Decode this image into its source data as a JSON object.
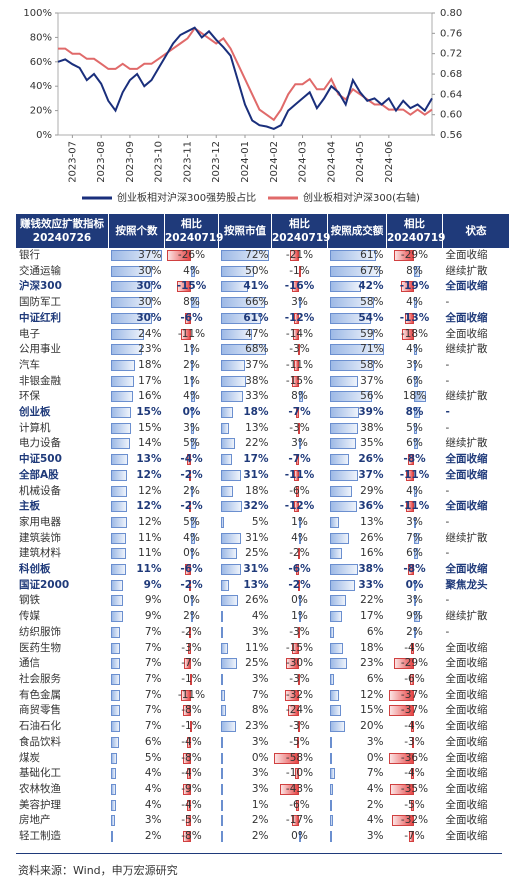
{
  "chart_data": {
    "type": "line",
    "categories": [
      null,
      null,
      "2023-07",
      null,
      null,
      null,
      "2023-08",
      null,
      null,
      null,
      "2023-09",
      null,
      null,
      null,
      "2023-10",
      null,
      null,
      null,
      "2023-11",
      null,
      null,
      null,
      "2023-12",
      null,
      null,
      null,
      "2024-01",
      null,
      null,
      null,
      "2024-02",
      null,
      null,
      null,
      "2024-03",
      null,
      null,
      null,
      "2024-04",
      null,
      null,
      null,
      "2024-05",
      null,
      null,
      null,
      "2024-06",
      null,
      null,
      null,
      null,
      null,
      null
    ],
    "series": [
      {
        "name": "创业板相对沪深300强势股占比",
        "color": "#1a2f7c",
        "values": [
          60,
          62,
          58,
          55,
          45,
          50,
          42,
          28,
          20,
          35,
          45,
          50,
          40,
          45,
          55,
          65,
          75,
          82,
          85,
          88,
          80,
          85,
          78,
          72,
          65,
          45,
          25,
          12,
          8,
          7,
          5,
          8,
          20,
          25,
          30,
          35,
          22,
          30,
          40,
          35,
          25,
          45,
          35,
          28,
          30,
          25,
          30,
          20,
          28,
          22,
          25,
          20,
          30
        ]
      },
      {
        "name": "创业板相对沪深300(右轴)",
        "color": "#e06a6a",
        "axis": "y2",
        "values": [
          0.73,
          0.73,
          0.72,
          0.72,
          0.71,
          0.71,
          0.7,
          0.69,
          0.69,
          0.7,
          0.69,
          0.69,
          0.7,
          0.7,
          0.71,
          0.72,
          0.73,
          0.74,
          0.75,
          0.77,
          0.76,
          0.75,
          0.74,
          0.75,
          0.73,
          0.7,
          0.67,
          0.64,
          0.61,
          0.6,
          0.59,
          0.61,
          0.64,
          0.66,
          0.66,
          0.67,
          0.65,
          0.65,
          0.67,
          0.64,
          0.63,
          0.65,
          0.64,
          0.63,
          0.62,
          0.62,
          0.61,
          0.61,
          0.61,
          0.6,
          0.61,
          0.6,
          0.61
        ]
      }
    ],
    "ylim": [
      0,
      100
    ],
    "yticks": [
      {
        "value": 0,
        "label": "0%"
      },
      {
        "value": 20,
        "label": "20%"
      },
      {
        "value": 40,
        "label": "40%"
      },
      {
        "value": 60,
        "label": "60%"
      },
      {
        "value": 80,
        "label": "80%"
      },
      {
        "value": 100,
        "label": "100%"
      }
    ],
    "y2lim": [
      0.56,
      0.8
    ],
    "y2ticks": [
      0.56,
      {
        "value": 0.6,
        "label": "0.60"
      },
      0.64,
      0.68,
      0.72,
      0.76,
      {
        "value": 0.8,
        "label": "0.80"
      }
    ],
    "legend": "bottom"
  },
  "table": {
    "header": [
      [
        "赚钱效应扩散指标",
        "20240726"
      ],
      [
        "按照个数"
      ],
      [
        "相比",
        "20240719"
      ],
      [
        "按照市值"
      ],
      [
        "相比",
        "20240719"
      ],
      [
        "按照成交额"
      ],
      [
        "相比",
        "20240719"
      ],
      [
        "状态"
      ]
    ],
    "rows": [
      [
        "银行",
        "37%",
        "-26%",
        "72%",
        "-21%",
        "61%",
        "-29%",
        "全面收缩"
      ],
      [
        "交通运输",
        "30%",
        "4%",
        "50%",
        "-1%",
        "67%",
        "8%",
        "继续扩散"
      ],
      [
        "沪深300",
        "30%",
        "-15%",
        "41%",
        "-16%",
        "42%",
        "-19%",
        "全面收缩"
      ],
      [
        "国防军工",
        "30%",
        "8%",
        "66%",
        "3%",
        "58%",
        "4%",
        "-"
      ],
      [
        "中证红利",
        "30%",
        "-6%",
        "61%",
        "-12%",
        "54%",
        "-13%",
        "全面收缩"
      ],
      [
        "电子",
        "24%",
        "-11%",
        "47%",
        "-14%",
        "59%",
        "-18%",
        "全面收缩"
      ],
      [
        "公用事业",
        "23%",
        "1%",
        "68%",
        "-3%",
        "71%",
        "4%",
        "继续扩散"
      ],
      [
        "汽车",
        "18%",
        "2%",
        "37%",
        "-11%",
        "58%",
        "3%",
        "-"
      ],
      [
        "非银金融",
        "17%",
        "1%",
        "38%",
        "-15%",
        "37%",
        "6%",
        "-"
      ],
      [
        "环保",
        "16%",
        "4%",
        "33%",
        "8%",
        "56%",
        "18%",
        "继续扩散"
      ],
      [
        "创业板",
        "15%",
        "0%",
        "18%",
        "-7%",
        "39%",
        "8%",
        "-"
      ],
      [
        "计算机",
        "15%",
        "3%",
        "13%",
        "-3%",
        "38%",
        "5%",
        "-"
      ],
      [
        "电力设备",
        "14%",
        "5%",
        "22%",
        "3%",
        "35%",
        "6%",
        "继续扩散"
      ],
      [
        "中证500",
        "13%",
        "-4%",
        "17%",
        "-7%",
        "26%",
        "-8%",
        "全面收缩"
      ],
      [
        "全部A股",
        "12%",
        "-2%",
        "31%",
        "-11%",
        "37%",
        "-11%",
        "全面收缩"
      ],
      [
        "机械设备",
        "12%",
        "2%",
        "18%",
        "-6%",
        "29%",
        "4%",
        "-"
      ],
      [
        "主板",
        "12%",
        "-2%",
        "32%",
        "-12%",
        "36%",
        "-11%",
        "全面收缩"
      ],
      [
        "家用电器",
        "12%",
        "5%",
        "5%",
        "1%",
        "13%",
        "3%",
        "-"
      ],
      [
        "建筑装饰",
        "11%",
        "4%",
        "31%",
        "4%",
        "26%",
        "7%",
        "继续扩散"
      ],
      [
        "建筑材料",
        "11%",
        "0%",
        "25%",
        "-2%",
        "16%",
        "6%",
        "-"
      ],
      [
        "科创板",
        "11%",
        "-6%",
        "31%",
        "-6%",
        "38%",
        "-8%",
        "全面收缩"
      ],
      [
        "国证2000",
        "9%",
        "-2%",
        "13%",
        "-2%",
        "33%",
        "0%",
        "聚焦龙头"
      ],
      [
        "钢铁",
        "9%",
        "0%",
        "26%",
        "0%",
        "22%",
        "3%",
        "-"
      ],
      [
        "传媒",
        "9%",
        "2%",
        "4%",
        "1%",
        "17%",
        "9%",
        "继续扩散"
      ],
      [
        "纺织服饰",
        "7%",
        "-2%",
        "3%",
        "-3%",
        "6%",
        "2%",
        "-"
      ],
      [
        "医药生物",
        "7%",
        "-3%",
        "11%",
        "-15%",
        "18%",
        "-4%",
        "全面收缩"
      ],
      [
        "通信",
        "7%",
        "-7%",
        "25%",
        "-30%",
        "23%",
        "-29%",
        "全面收缩"
      ],
      [
        "社会服务",
        "7%",
        "-1%",
        "3%",
        "-3%",
        "6%",
        "-6%",
        "全面收缩"
      ],
      [
        "有色金属",
        "7%",
        "-11%",
        "7%",
        "-32%",
        "12%",
        "-37%",
        "全面收缩"
      ],
      [
        "商贸零售",
        "7%",
        "-8%",
        "8%",
        "-24%",
        "15%",
        "-37%",
        "全面收缩"
      ],
      [
        "石油石化",
        "7%",
        "-1%",
        "23%",
        "-3%",
        "20%",
        "-4%",
        "全面收缩"
      ],
      [
        "食品饮料",
        "6%",
        "-4%",
        "3%",
        "-5%",
        "3%",
        "-3%",
        "全面收缩"
      ],
      [
        "煤炭",
        "5%",
        "-8%",
        "0%",
        "-58%",
        "0%",
        "-36%",
        "全面收缩"
      ],
      [
        "基础化工",
        "4%",
        "-4%",
        "3%",
        "-10%",
        "7%",
        "-4%",
        "全面收缩"
      ],
      [
        "农林牧渔",
        "4%",
        "-9%",
        "3%",
        "-43%",
        "4%",
        "-35%",
        "全面收缩"
      ],
      [
        "美容护理",
        "4%",
        "-4%",
        "1%",
        "-6%",
        "2%",
        "-5%",
        "全面收缩"
      ],
      [
        "房地产",
        "3%",
        "-5%",
        "2%",
        "-17%",
        "4%",
        "-32%",
        "全面收缩"
      ],
      [
        "轻工制造",
        "2%",
        "-8%",
        "2%",
        "0%",
        "3%",
        "-7%",
        "全面收缩"
      ]
    ],
    "highlighted_rows": [
      2,
      4,
      10,
      13,
      14,
      16,
      20,
      21
    ]
  },
  "footer": {
    "source": "资料来源：Wind，申万宏源研究"
  }
}
